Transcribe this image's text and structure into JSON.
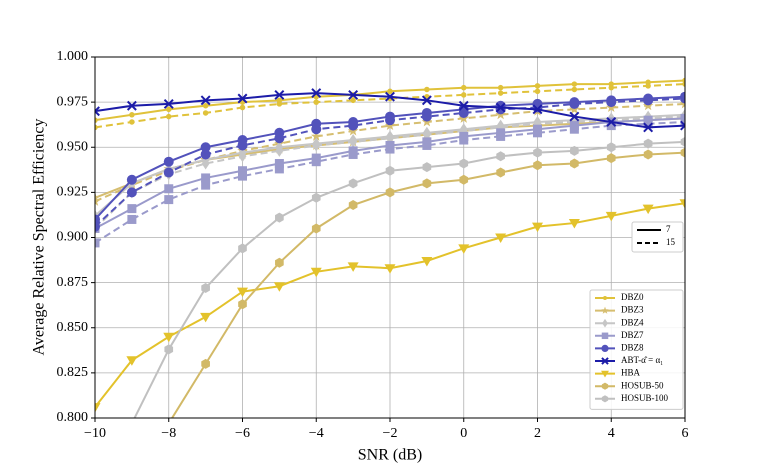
{
  "chart_data": {
    "type": "line",
    "x_label": "SNR (dB)",
    "y_label": "Average Relative Spectral Efficiency",
    "x": [
      -10,
      -9,
      -8,
      -7,
      -6,
      -5,
      -4,
      -3,
      -2,
      -1,
      0,
      1,
      2,
      3,
      4,
      5,
      6
    ],
    "xlim": [
      -10,
      6
    ],
    "xticks": [
      {
        "value": -10,
        "label": "−10"
      },
      {
        "value": -8,
        "label": "−8"
      },
      {
        "value": -6,
        "label": "−6"
      },
      {
        "value": -4,
        "label": "−4"
      },
      {
        "value": -2,
        "label": "−2"
      },
      0,
      2,
      4,
      6
    ],
    "ylim": [
      0.8,
      1.0
    ],
    "yticks": [
      {
        "value": 0.8,
        "label": "0.800"
      },
      {
        "value": 0.825,
        "label": "0.825"
      },
      {
        "value": 0.85,
        "label": "0.850"
      },
      {
        "value": 0.875,
        "label": "0.875"
      },
      {
        "value": 0.9,
        "label": "0.900"
      },
      {
        "value": 0.925,
        "label": "0.925"
      },
      {
        "value": 0.95,
        "label": "0.950"
      },
      {
        "value": 0.975,
        "label": "0.975"
      },
      {
        "value": 1.0,
        "label": "1.000"
      }
    ],
    "grid": true,
    "style_legend": [
      {
        "label": "7",
        "dash": "solid"
      },
      {
        "label": "15",
        "dash": "dashed"
      }
    ],
    "series": [
      {
        "name": "DBZ0",
        "color": "#e0c23a",
        "marker": "dot",
        "values": [
          0.965,
          0.968,
          0.971,
          0.973,
          0.975,
          0.976,
          0.978,
          0.979,
          0.981,
          0.982,
          0.983,
          0.983,
          0.984,
          0.985,
          0.985,
          0.986,
          0.987
        ],
        "values_15": [
          0.961,
          0.964,
          0.967,
          0.969,
          0.972,
          0.974,
          0.975,
          0.976,
          0.977,
          0.978,
          0.979,
          0.98,
          0.981,
          0.982,
          0.983,
          0.984,
          0.985
        ]
      },
      {
        "name": "DBZ3",
        "color": "#d6be70",
        "marker": "star",
        "values": [
          0.922,
          0.93,
          0.938,
          0.943,
          0.946,
          0.949,
          0.951,
          0.953,
          0.955,
          0.957,
          0.959,
          0.961,
          0.962,
          0.963,
          0.964,
          0.965,
          0.966
        ],
        "values_15": [
          0.92,
          0.929,
          0.937,
          0.943,
          0.948,
          0.952,
          0.956,
          0.959,
          0.962,
          0.964,
          0.966,
          0.968,
          0.97,
          0.971,
          0.972,
          0.973,
          0.974
        ]
      },
      {
        "name": "DBZ4",
        "color": "#c6c6c6",
        "marker": "diamond",
        "values": [
          0.912,
          0.93,
          0.938,
          0.943,
          0.947,
          0.95,
          0.952,
          0.954,
          0.956,
          0.958,
          0.96,
          0.962,
          0.964,
          0.965,
          0.966,
          0.967,
          0.968
        ],
        "values_15": [
          0.905,
          0.925,
          0.935,
          0.941,
          0.945,
          0.948,
          0.951,
          0.953,
          0.955,
          0.957,
          0.959,
          0.961,
          0.963,
          0.964,
          0.965,
          0.966,
          0.967
        ]
      },
      {
        "name": "DBZ7",
        "color": "#9a9acb",
        "marker": "square",
        "values": [
          0.905,
          0.916,
          0.927,
          0.933,
          0.937,
          0.941,
          0.944,
          0.948,
          0.951,
          0.953,
          0.956,
          0.958,
          0.96,
          0.962,
          0.964,
          0.965,
          0.966
        ],
        "values_15": [
          0.897,
          0.91,
          0.921,
          0.929,
          0.934,
          0.938,
          0.942,
          0.946,
          0.949,
          0.951,
          0.954,
          0.956,
          0.958,
          0.96,
          0.962,
          0.963,
          0.964
        ]
      },
      {
        "name": "DBZ8",
        "color": "#5252bb",
        "marker": "circle",
        "values": [
          0.91,
          0.932,
          0.942,
          0.95,
          0.954,
          0.958,
          0.963,
          0.964,
          0.967,
          0.969,
          0.971,
          0.973,
          0.974,
          0.975,
          0.976,
          0.977,
          0.978
        ],
        "values_15": [
          0.906,
          0.925,
          0.936,
          0.946,
          0.951,
          0.955,
          0.96,
          0.962,
          0.965,
          0.967,
          0.969,
          0.971,
          0.972,
          0.974,
          0.975,
          0.976,
          0.977
        ]
      },
      {
        "name": "ABT-α̂ = α₁",
        "color": "#1c1ca8",
        "marker": "x",
        "values": [
          0.97,
          0.973,
          0.974,
          0.976,
          0.977,
          0.979,
          0.98,
          0.979,
          0.978,
          0.976,
          0.973,
          0.972,
          0.971,
          0.967,
          0.964,
          0.961,
          0.962
        ]
      },
      {
        "name": "HBA",
        "color": "#e3c22b",
        "marker": "tri-down",
        "values": [
          0.806,
          0.832,
          0.845,
          0.856,
          0.87,
          0.873,
          0.881,
          0.884,
          0.883,
          0.887,
          0.894,
          0.9,
          0.906,
          0.908,
          0.912,
          0.916,
          0.919
        ]
      },
      {
        "name": "HOSUB-50",
        "color": "#d2b967",
        "marker": "hexagon",
        "values": [
          null,
          null,
          0.797,
          0.83,
          0.863,
          0.886,
          0.905,
          0.918,
          0.925,
          0.93,
          0.932,
          0.936,
          0.94,
          0.941,
          0.944,
          0.946,
          0.947
        ]
      },
      {
        "name": "HOSUB-100",
        "color": "#c0c0c0",
        "marker": "hexagon",
        "values": [
          null,
          0.797,
          0.838,
          0.872,
          0.894,
          0.911,
          0.922,
          0.93,
          0.937,
          0.939,
          0.941,
          0.945,
          0.947,
          0.948,
          0.95,
          0.952,
          0.953
        ]
      }
    ]
  }
}
